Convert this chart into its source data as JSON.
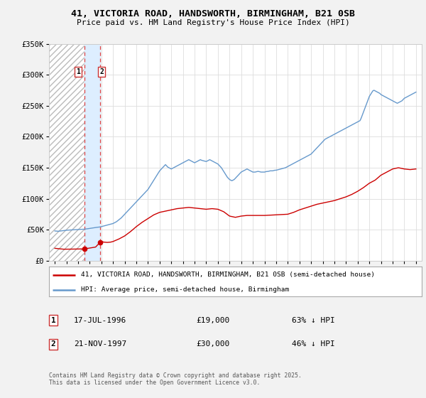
{
  "title_line1": "41, VICTORIA ROAD, HANDSWORTH, BIRMINGHAM, B21 0SB",
  "title_line2": "Price paid vs. HM Land Registry's House Price Index (HPI)",
  "background_color": "#f2f2f2",
  "plot_bg_color": "#ffffff",
  "ylim": [
    0,
    350000
  ],
  "yticks": [
    0,
    50000,
    100000,
    150000,
    200000,
    250000,
    300000,
    350000
  ],
  "ytick_labels": [
    "£0",
    "£50K",
    "£100K",
    "£150K",
    "£200K",
    "£250K",
    "£300K",
    "£350K"
  ],
  "xlim_start": 1993.5,
  "xlim_end": 2025.5,
  "transactions": [
    {
      "date_year": 1996.54,
      "price": 19000,
      "label": "1"
    },
    {
      "date_year": 1997.9,
      "price": 30000,
      "label": "2"
    }
  ],
  "hpi_color": "#6699cc",
  "price_color": "#cc0000",
  "vspan_color": "#ddeeff",
  "legend_label_price": "41, VICTORIA ROAD, HANDSWORTH, BIRMINGHAM, B21 0SB (semi-detached house)",
  "legend_label_hpi": "HPI: Average price, semi-detached house, Birmingham",
  "annotation1_label": "1",
  "annotation1_date": "17-JUL-1996",
  "annotation1_price": "£19,000",
  "annotation1_hpi": "63% ↓ HPI",
  "annotation2_label": "2",
  "annotation2_date": "21-NOV-1997",
  "annotation2_price": "£30,000",
  "annotation2_hpi": "46% ↓ HPI",
  "footer": "Contains HM Land Registry data © Crown copyright and database right 2025.\nThis data is licensed under the Open Government Licence v3.0.",
  "hpi_data": [
    [
      1994.0,
      48000
    ],
    [
      1994.1,
      47800
    ],
    [
      1994.2,
      47600
    ],
    [
      1994.3,
      47500
    ],
    [
      1994.4,
      47700
    ],
    [
      1994.5,
      48000
    ],
    [
      1994.6,
      48200
    ],
    [
      1994.7,
      48500
    ],
    [
      1994.8,
      48700
    ],
    [
      1994.9,
      48900
    ],
    [
      1995.0,
      49000
    ],
    [
      1995.1,
      49200
    ],
    [
      1995.2,
      49400
    ],
    [
      1995.3,
      49500
    ],
    [
      1995.4,
      49600
    ],
    [
      1995.5,
      49700
    ],
    [
      1995.6,
      49800
    ],
    [
      1995.7,
      49900
    ],
    [
      1995.8,
      50000
    ],
    [
      1995.9,
      50100
    ],
    [
      1996.0,
      50200
    ],
    [
      1996.1,
      50300
    ],
    [
      1996.2,
      50400
    ],
    [
      1996.3,
      50500
    ],
    [
      1996.4,
      50600
    ],
    [
      1996.5,
      50800
    ],
    [
      1996.6,
      51000
    ],
    [
      1996.7,
      51200
    ],
    [
      1996.8,
      51500
    ],
    [
      1996.9,
      51800
    ],
    [
      1997.0,
      52000
    ],
    [
      1997.1,
      52300
    ],
    [
      1997.2,
      52600
    ],
    [
      1997.3,
      52900
    ],
    [
      1997.4,
      53200
    ],
    [
      1997.5,
      53500
    ],
    [
      1997.6,
      53800
    ],
    [
      1997.7,
      54000
    ],
    [
      1997.8,
      54300
    ],
    [
      1997.9,
      54500
    ],
    [
      1998.0,
      55000
    ],
    [
      1998.1,
      55500
    ],
    [
      1998.2,
      56000
    ],
    [
      1998.3,
      56500
    ],
    [
      1998.4,
      57000
    ],
    [
      1998.5,
      57500
    ],
    [
      1998.6,
      58000
    ],
    [
      1998.7,
      58500
    ],
    [
      1998.8,
      59000
    ],
    [
      1998.9,
      59500
    ],
    [
      1999.0,
      60000
    ],
    [
      1999.1,
      61000
    ],
    [
      1999.2,
      62000
    ],
    [
      1999.3,
      63000
    ],
    [
      1999.4,
      64500
    ],
    [
      1999.5,
      66000
    ],
    [
      1999.6,
      67500
    ],
    [
      1999.7,
      69000
    ],
    [
      1999.8,
      71000
    ],
    [
      1999.9,
      73000
    ],
    [
      2000.0,
      75000
    ],
    [
      2000.1,
      77000
    ],
    [
      2000.2,
      79000
    ],
    [
      2000.3,
      81000
    ],
    [
      2000.4,
      83000
    ],
    [
      2000.5,
      85000
    ],
    [
      2000.6,
      87000
    ],
    [
      2000.7,
      89000
    ],
    [
      2000.8,
      91000
    ],
    [
      2000.9,
      93000
    ],
    [
      2001.0,
      95000
    ],
    [
      2001.1,
      97000
    ],
    [
      2001.2,
      99000
    ],
    [
      2001.3,
      101000
    ],
    [
      2001.4,
      103000
    ],
    [
      2001.5,
      105000
    ],
    [
      2001.6,
      107000
    ],
    [
      2001.7,
      109000
    ],
    [
      2001.8,
      111000
    ],
    [
      2001.9,
      113000
    ],
    [
      2002.0,
      115000
    ],
    [
      2002.1,
      118000
    ],
    [
      2002.2,
      121000
    ],
    [
      2002.3,
      124000
    ],
    [
      2002.4,
      127000
    ],
    [
      2002.5,
      130000
    ],
    [
      2002.6,
      133000
    ],
    [
      2002.7,
      136000
    ],
    [
      2002.8,
      139000
    ],
    [
      2002.9,
      142000
    ],
    [
      2003.0,
      145000
    ],
    [
      2003.1,
      147000
    ],
    [
      2003.2,
      149000
    ],
    [
      2003.3,
      151000
    ],
    [
      2003.4,
      153000
    ],
    [
      2003.5,
      155000
    ],
    [
      2003.6,
      153000
    ],
    [
      2003.7,
      151000
    ],
    [
      2003.8,
      150000
    ],
    [
      2003.9,
      149000
    ],
    [
      2004.0,
      148000
    ],
    [
      2004.1,
      149000
    ],
    [
      2004.2,
      150000
    ],
    [
      2004.3,
      151000
    ],
    [
      2004.4,
      152000
    ],
    [
      2004.5,
      153000
    ],
    [
      2004.6,
      154000
    ],
    [
      2004.7,
      155000
    ],
    [
      2004.8,
      156000
    ],
    [
      2004.9,
      157000
    ],
    [
      2005.0,
      158000
    ],
    [
      2005.1,
      159000
    ],
    [
      2005.2,
      160000
    ],
    [
      2005.3,
      161000
    ],
    [
      2005.4,
      162000
    ],
    [
      2005.5,
      163000
    ],
    [
      2005.6,
      162000
    ],
    [
      2005.7,
      161000
    ],
    [
      2005.8,
      160000
    ],
    [
      2005.9,
      159000
    ],
    [
      2006.0,
      158000
    ],
    [
      2006.1,
      159000
    ],
    [
      2006.2,
      160000
    ],
    [
      2006.3,
      161000
    ],
    [
      2006.4,
      162000
    ],
    [
      2006.5,
      163000
    ],
    [
      2006.6,
      162000
    ],
    [
      2006.7,
      161500
    ],
    [
      2006.8,
      161000
    ],
    [
      2006.9,
      160500
    ],
    [
      2007.0,
      160000
    ],
    [
      2007.1,
      161000
    ],
    [
      2007.2,
      162000
    ],
    [
      2007.3,
      163000
    ],
    [
      2007.4,
      162000
    ],
    [
      2007.5,
      161000
    ],
    [
      2007.6,
      160000
    ],
    [
      2007.7,
      159000
    ],
    [
      2007.8,
      158000
    ],
    [
      2007.9,
      157000
    ],
    [
      2008.0,
      156000
    ],
    [
      2008.1,
      154000
    ],
    [
      2008.2,
      152000
    ],
    [
      2008.3,
      150000
    ],
    [
      2008.4,
      147000
    ],
    [
      2008.5,
      144000
    ],
    [
      2008.6,
      141000
    ],
    [
      2008.7,
      138000
    ],
    [
      2008.8,
      135000
    ],
    [
      2008.9,
      133000
    ],
    [
      2009.0,
      131000
    ],
    [
      2009.1,
      130000
    ],
    [
      2009.2,
      129000
    ],
    [
      2009.3,
      130000
    ],
    [
      2009.4,
      131000
    ],
    [
      2009.5,
      133000
    ],
    [
      2009.6,
      135000
    ],
    [
      2009.7,
      137000
    ],
    [
      2009.8,
      139000
    ],
    [
      2009.9,
      141000
    ],
    [
      2010.0,
      143000
    ],
    [
      2010.1,
      144000
    ],
    [
      2010.2,
      145000
    ],
    [
      2010.3,
      146000
    ],
    [
      2010.4,
      147000
    ],
    [
      2010.5,
      148000
    ],
    [
      2010.6,
      147000
    ],
    [
      2010.7,
      146000
    ],
    [
      2010.8,
      145000
    ],
    [
      2010.9,
      144000
    ],
    [
      2011.0,
      143000
    ],
    [
      2011.1,
      143000
    ],
    [
      2011.2,
      143000
    ],
    [
      2011.3,
      143500
    ],
    [
      2011.4,
      144000
    ],
    [
      2011.5,
      144000
    ],
    [
      2011.6,
      143500
    ],
    [
      2011.7,
      143000
    ],
    [
      2011.8,
      143000
    ],
    [
      2011.9,
      143000
    ],
    [
      2012.0,
      143000
    ],
    [
      2012.1,
      143500
    ],
    [
      2012.2,
      144000
    ],
    [
      2012.3,
      144000
    ],
    [
      2012.4,
      144500
    ],
    [
      2012.5,
      145000
    ],
    [
      2012.6,
      145000
    ],
    [
      2012.7,
      145000
    ],
    [
      2012.8,
      145500
    ],
    [
      2012.9,
      146000
    ],
    [
      2013.0,
      146000
    ],
    [
      2013.1,
      146500
    ],
    [
      2013.2,
      147000
    ],
    [
      2013.3,
      147500
    ],
    [
      2013.4,
      148000
    ],
    [
      2013.5,
      148500
    ],
    [
      2013.6,
      149000
    ],
    [
      2013.7,
      149500
    ],
    [
      2013.8,
      150000
    ],
    [
      2013.9,
      151000
    ],
    [
      2014.0,
      152000
    ],
    [
      2014.1,
      153000
    ],
    [
      2014.2,
      154000
    ],
    [
      2014.3,
      155000
    ],
    [
      2014.4,
      156000
    ],
    [
      2014.5,
      157000
    ],
    [
      2014.6,
      158000
    ],
    [
      2014.7,
      159000
    ],
    [
      2014.8,
      160000
    ],
    [
      2014.9,
      161000
    ],
    [
      2015.0,
      162000
    ],
    [
      2015.1,
      163000
    ],
    [
      2015.2,
      164000
    ],
    [
      2015.3,
      165000
    ],
    [
      2015.4,
      166000
    ],
    [
      2015.5,
      167000
    ],
    [
      2015.6,
      168000
    ],
    [
      2015.7,
      169000
    ],
    [
      2015.8,
      170000
    ],
    [
      2015.9,
      171000
    ],
    [
      2016.0,
      172000
    ],
    [
      2016.1,
      174000
    ],
    [
      2016.2,
      176000
    ],
    [
      2016.3,
      178000
    ],
    [
      2016.4,
      180000
    ],
    [
      2016.5,
      182000
    ],
    [
      2016.6,
      184000
    ],
    [
      2016.7,
      186000
    ],
    [
      2016.8,
      188000
    ],
    [
      2016.9,
      190000
    ],
    [
      2017.0,
      192000
    ],
    [
      2017.1,
      194000
    ],
    [
      2017.2,
      196000
    ],
    [
      2017.3,
      197000
    ],
    [
      2017.4,
      198000
    ],
    [
      2017.5,
      199000
    ],
    [
      2017.6,
      200000
    ],
    [
      2017.7,
      201000
    ],
    [
      2017.8,
      202000
    ],
    [
      2017.9,
      203000
    ],
    [
      2018.0,
      204000
    ],
    [
      2018.1,
      205000
    ],
    [
      2018.2,
      206000
    ],
    [
      2018.3,
      207000
    ],
    [
      2018.4,
      208000
    ],
    [
      2018.5,
      209000
    ],
    [
      2018.6,
      210000
    ],
    [
      2018.7,
      211000
    ],
    [
      2018.8,
      212000
    ],
    [
      2018.9,
      213000
    ],
    [
      2019.0,
      214000
    ],
    [
      2019.1,
      215000
    ],
    [
      2019.2,
      216000
    ],
    [
      2019.3,
      217000
    ],
    [
      2019.4,
      218000
    ],
    [
      2019.5,
      219000
    ],
    [
      2019.6,
      220000
    ],
    [
      2019.7,
      221000
    ],
    [
      2019.8,
      222000
    ],
    [
      2019.9,
      223000
    ],
    [
      2020.0,
      224000
    ],
    [
      2020.1,
      225000
    ],
    [
      2020.2,
      226000
    ],
    [
      2020.3,
      230000
    ],
    [
      2020.4,
      235000
    ],
    [
      2020.5,
      240000
    ],
    [
      2020.6,
      245000
    ],
    [
      2020.7,
      250000
    ],
    [
      2020.8,
      255000
    ],
    [
      2020.9,
      260000
    ],
    [
      2021.0,
      265000
    ],
    [
      2021.1,
      268000
    ],
    [
      2021.2,
      271000
    ],
    [
      2021.3,
      274000
    ],
    [
      2021.4,
      275000
    ],
    [
      2021.5,
      274000
    ],
    [
      2021.6,
      273000
    ],
    [
      2021.7,
      272000
    ],
    [
      2021.8,
      271000
    ],
    [
      2021.9,
      270000
    ],
    [
      2022.0,
      268000
    ],
    [
      2022.1,
      267000
    ],
    [
      2022.2,
      266000
    ],
    [
      2022.3,
      265000
    ],
    [
      2022.4,
      264000
    ],
    [
      2022.5,
      263000
    ],
    [
      2022.6,
      262000
    ],
    [
      2022.7,
      261000
    ],
    [
      2022.8,
      260000
    ],
    [
      2022.9,
      259000
    ],
    [
      2023.0,
      258000
    ],
    [
      2023.1,
      257000
    ],
    [
      2023.2,
      256000
    ],
    [
      2023.3,
      255000
    ],
    [
      2023.4,
      254000
    ],
    [
      2023.5,
      255000
    ],
    [
      2023.6,
      256000
    ],
    [
      2023.7,
      257000
    ],
    [
      2023.8,
      258000
    ],
    [
      2023.9,
      260000
    ],
    [
      2024.0,
      262000
    ],
    [
      2024.1,
      263000
    ],
    [
      2024.2,
      264000
    ],
    [
      2024.3,
      265000
    ],
    [
      2024.4,
      266000
    ],
    [
      2024.5,
      267000
    ],
    [
      2024.6,
      268000
    ],
    [
      2024.7,
      269000
    ],
    [
      2024.8,
      270000
    ],
    [
      2024.9,
      271000
    ],
    [
      2025.0,
      272000
    ]
  ],
  "price_data": [
    [
      1994.0,
      20000
    ],
    [
      1994.5,
      19000
    ],
    [
      1994.8,
      18500
    ],
    [
      1996.54,
      19000
    ],
    [
      1997.5,
      22000
    ],
    [
      1997.9,
      30000
    ],
    [
      1998.0,
      31000
    ],
    [
      1998.2,
      30000
    ],
    [
      1998.5,
      29500
    ],
    [
      1998.8,
      30000
    ],
    [
      1999.0,
      31000
    ],
    [
      1999.5,
      35000
    ],
    [
      2000.0,
      40000
    ],
    [
      2000.5,
      47000
    ],
    [
      2001.0,
      55000
    ],
    [
      2001.5,
      62000
    ],
    [
      2002.0,
      68000
    ],
    [
      2002.5,
      74000
    ],
    [
      2003.0,
      78000
    ],
    [
      2003.5,
      80000
    ],
    [
      2004.0,
      82000
    ],
    [
      2004.5,
      84000
    ],
    [
      2005.0,
      85000
    ],
    [
      2005.5,
      86000
    ],
    [
      2006.0,
      85000
    ],
    [
      2006.5,
      84000
    ],
    [
      2007.0,
      83000
    ],
    [
      2007.5,
      84000
    ],
    [
      2008.0,
      83000
    ],
    [
      2008.5,
      79000
    ],
    [
      2009.0,
      72000
    ],
    [
      2009.5,
      70000
    ],
    [
      2010.0,
      72000
    ],
    [
      2010.5,
      73000
    ],
    [
      2011.0,
      73000
    ],
    [
      2011.5,
      73000
    ],
    [
      2012.0,
      73000
    ],
    [
      2012.5,
      73500
    ],
    [
      2013.0,
      74000
    ],
    [
      2013.5,
      74500
    ],
    [
      2014.0,
      75000
    ],
    [
      2014.5,
      78000
    ],
    [
      2015.0,
      82000
    ],
    [
      2015.5,
      85000
    ],
    [
      2016.0,
      88000
    ],
    [
      2016.5,
      91000
    ],
    [
      2017.0,
      93000
    ],
    [
      2017.5,
      95000
    ],
    [
      2018.0,
      97000
    ],
    [
      2018.5,
      100000
    ],
    [
      2019.0,
      103000
    ],
    [
      2019.5,
      107000
    ],
    [
      2020.0,
      112000
    ],
    [
      2020.5,
      118000
    ],
    [
      2021.0,
      125000
    ],
    [
      2021.5,
      130000
    ],
    [
      2022.0,
      138000
    ],
    [
      2022.5,
      143000
    ],
    [
      2023.0,
      148000
    ],
    [
      2023.5,
      150000
    ],
    [
      2024.0,
      148000
    ],
    [
      2024.5,
      147000
    ],
    [
      2025.0,
      148000
    ]
  ]
}
